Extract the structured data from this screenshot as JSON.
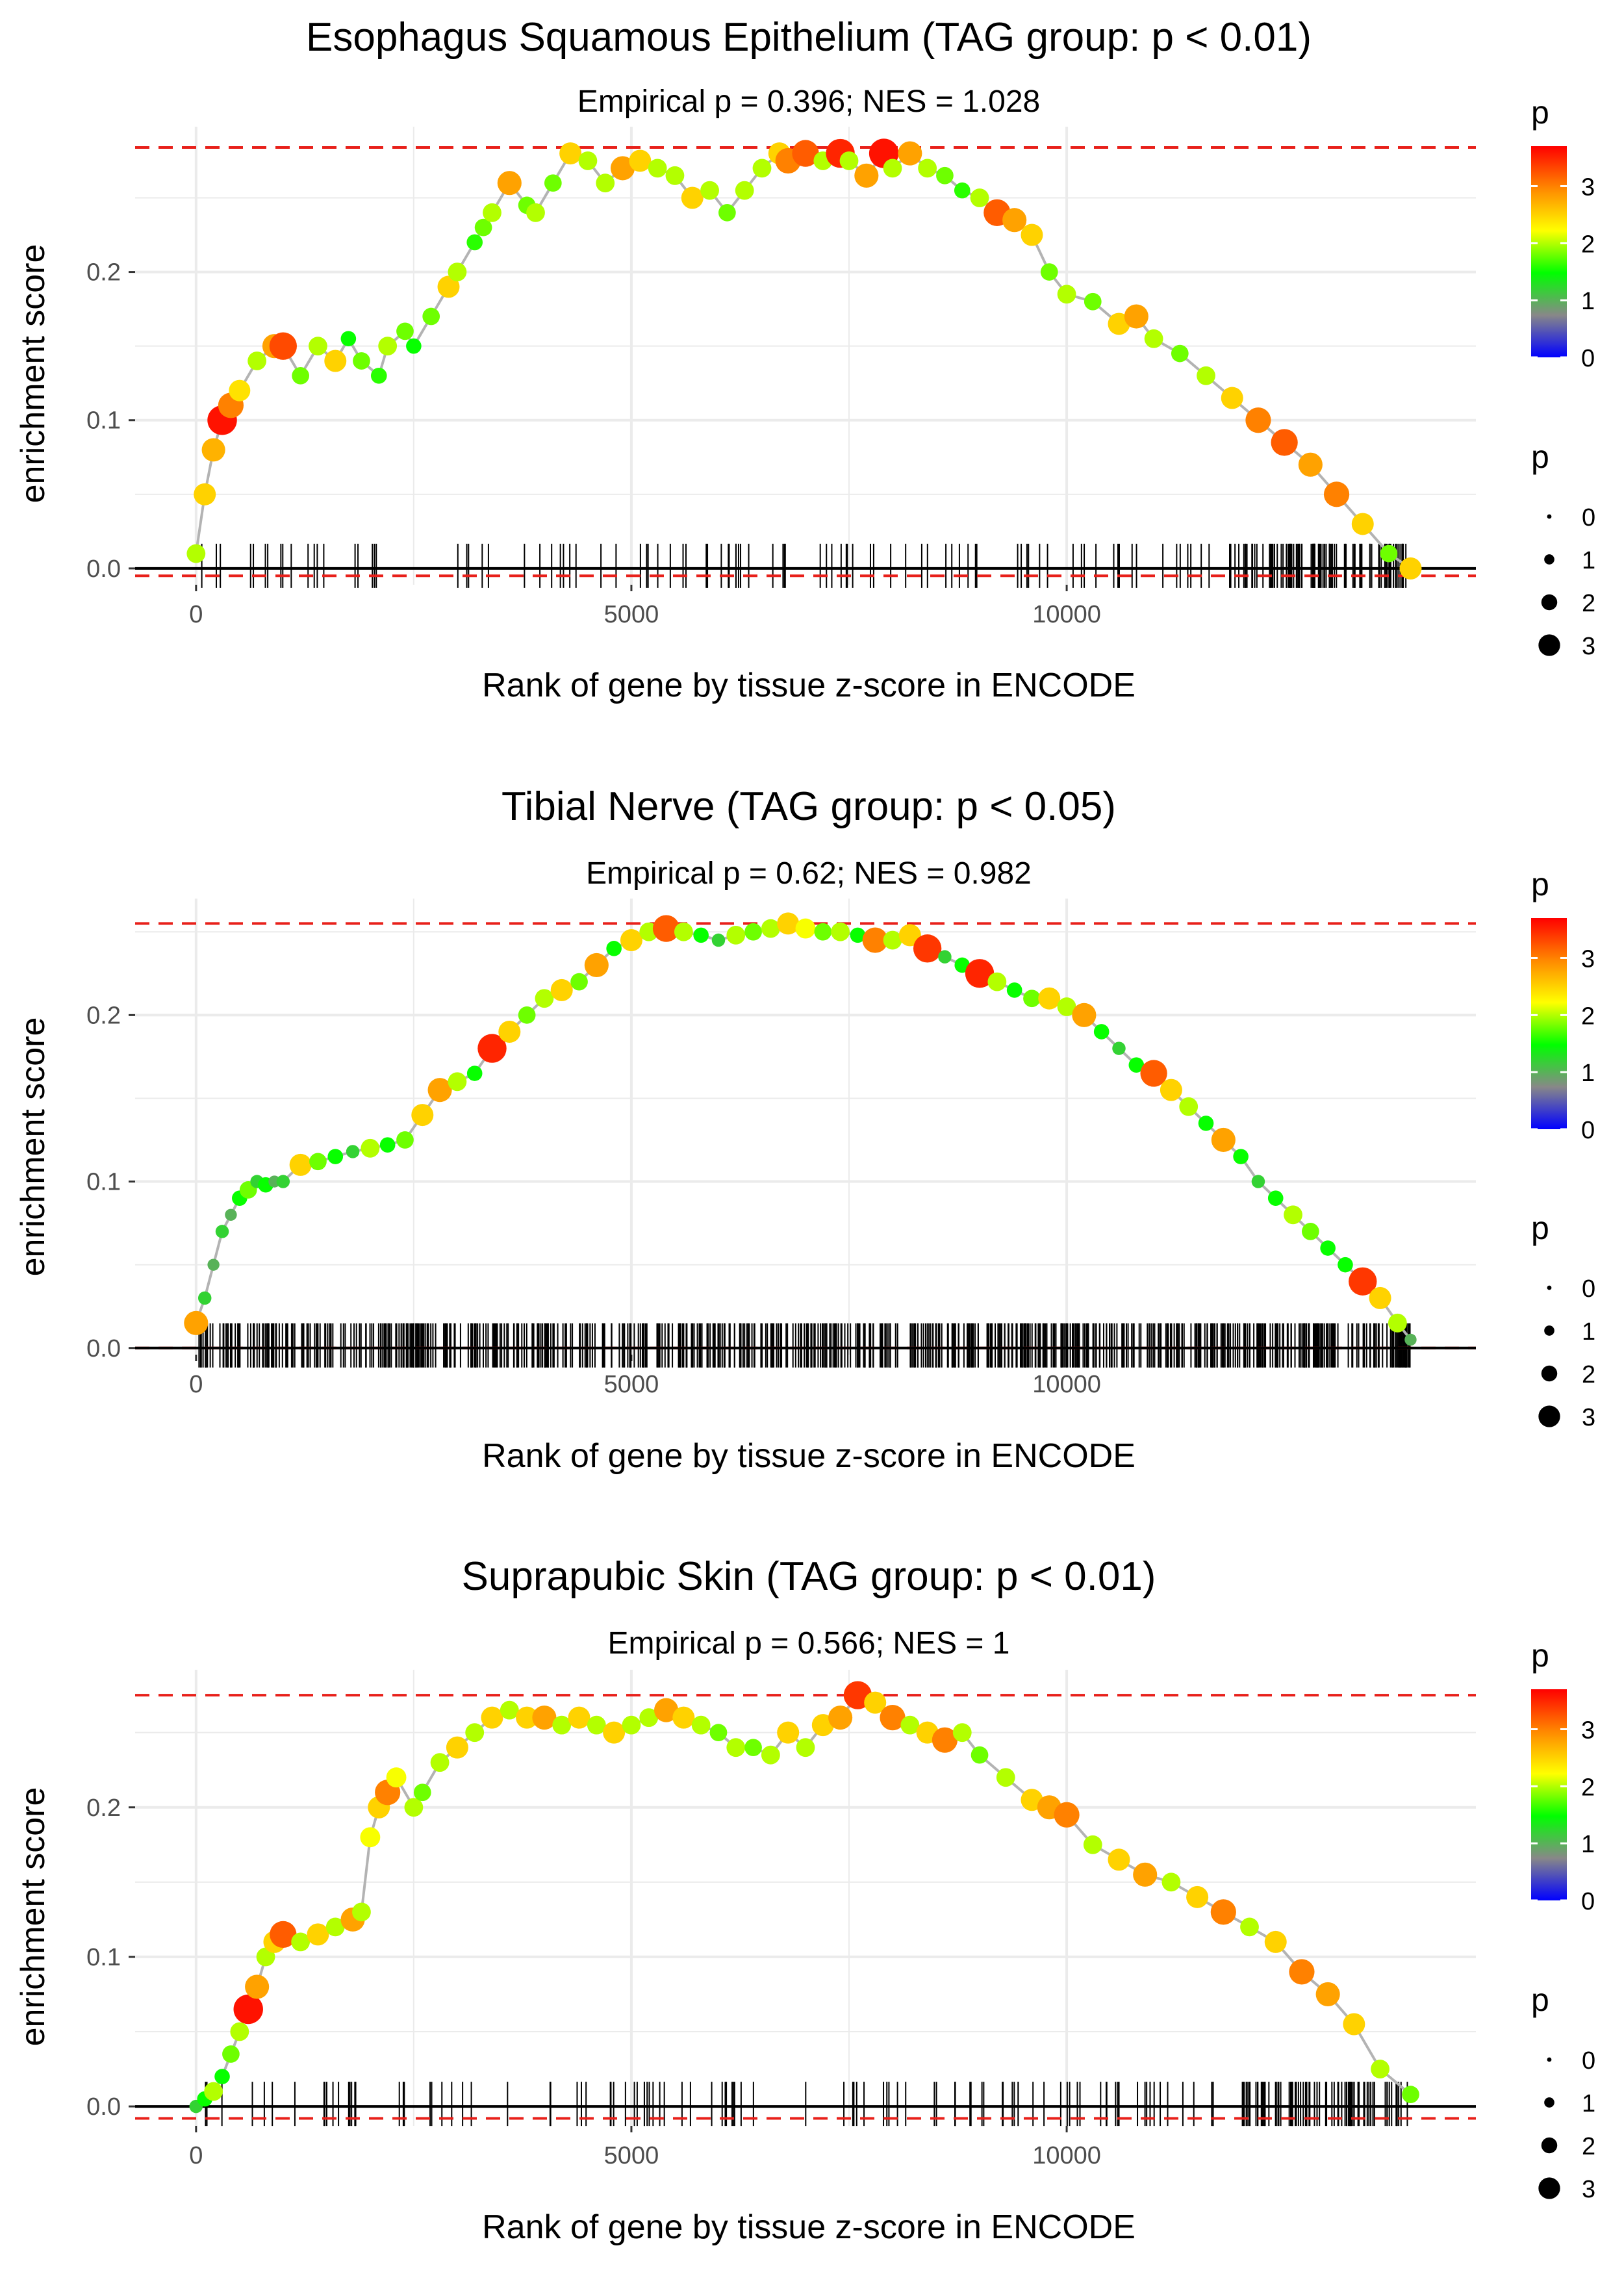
{
  "axis_common": {
    "xlabel": "Rank of gene by tissue z-score in ENCODE",
    "ylabel": "enrichment score",
    "xlim": [
      -700,
      14700
    ],
    "xticks": [
      0,
      5000,
      10000
    ],
    "yticks": [
      0.0,
      0.1,
      0.2
    ],
    "ytick_labels": [
      "0.0",
      "0.1",
      "0.2"
    ]
  },
  "legend": {
    "color_title": "p",
    "color_ticks": [
      0,
      1,
      2,
      3
    ],
    "color_range": [
      0,
      3.7
    ],
    "color_stops": [
      "#0000ff",
      "#888888",
      "#00ff00",
      "#ffff00",
      "#ff8800",
      "#ff0000"
    ],
    "size_title": "p",
    "size_values": [
      0,
      1,
      2,
      3
    ]
  },
  "colors": {
    "curve": "#b3b3b3",
    "max_line": "#e8201a",
    "grid": "#ebebeb",
    "zero_line": "#000000",
    "rug": "#000000"
  },
  "chart_data": [
    {
      "type": "scatter",
      "title": "Esophagus Squamous Epithelium (TAG group: p < 0.01)",
      "subtitle": "Empirical p = 0.396; NES = 1.028",
      "xlabel": "Rank of gene by tissue z-score in ENCODE",
      "ylabel": "enrichment score",
      "ylim": [
        -0.011,
        0.298
      ],
      "max_es": 0.284,
      "min_es": -0.005,
      "rug_density": "sparse",
      "x": [
        0,
        100,
        200,
        300,
        400,
        500,
        700,
        900,
        1000,
        1200,
        1400,
        1600,
        1750,
        1900,
        2100,
        2200,
        2400,
        2500,
        2700,
        2900,
        3000,
        3200,
        3300,
        3400,
        3600,
        3800,
        3900,
        4100,
        4300,
        4500,
        4700,
        4900,
        5100,
        5300,
        5500,
        5700,
        5900,
        6100,
        6300,
        6500,
        6700,
        6800,
        7000,
        7200,
        7400,
        7500,
        7700,
        7900,
        8000,
        8200,
        8400,
        8600,
        8800,
        9000,
        9200,
        9400,
        9600,
        9800,
        10000,
        10300,
        10600,
        10800,
        11000,
        11300,
        11600,
        11900,
        12200,
        12500,
        12800,
        13100,
        13400,
        13700,
        13950
      ],
      "y": [
        0.01,
        0.05,
        0.08,
        0.1,
        0.11,
        0.12,
        0.14,
        0.15,
        0.15,
        0.13,
        0.15,
        0.14,
        0.155,
        0.14,
        0.13,
        0.15,
        0.16,
        0.15,
        0.17,
        0.19,
        0.2,
        0.22,
        0.23,
        0.24,
        0.26,
        0.245,
        0.24,
        0.26,
        0.28,
        0.275,
        0.26,
        0.27,
        0.275,
        0.27,
        0.265,
        0.25,
        0.255,
        0.24,
        0.255,
        0.27,
        0.28,
        0.275,
        0.28,
        0.275,
        0.28,
        0.275,
        0.265,
        0.28,
        0.27,
        0.28,
        0.27,
        0.265,
        0.255,
        0.25,
        0.24,
        0.235,
        0.225,
        0.2,
        0.185,
        0.18,
        0.165,
        0.17,
        0.155,
        0.145,
        0.13,
        0.115,
        0.1,
        0.085,
        0.07,
        0.05,
        0.03,
        0.01,
        0.0
      ],
      "p": [
        2.0,
        2.5,
        2.7,
        3.6,
        3.0,
        2.4,
        2.0,
        2.8,
        3.3,
        1.8,
        2.0,
        2.5,
        1.5,
        1.8,
        1.6,
        2.0,
        1.8,
        1.5,
        1.8,
        2.5,
        2.0,
        1.6,
        1.8,
        2.0,
        2.8,
        1.8,
        2.0,
        1.8,
        2.5,
        2.0,
        2.0,
        2.8,
        2.5,
        2.0,
        2.0,
        2.5,
        2.0,
        1.8,
        2.0,
        2.0,
        2.5,
        3.0,
        3.2,
        2.0,
        3.5,
        2.0,
        2.8,
        3.6,
        2.0,
        2.8,
        2.0,
        1.8,
        1.6,
        2.0,
        3.2,
        2.8,
        2.5,
        1.8,
        2.0,
        1.8,
        2.5,
        2.8,
        2.0,
        1.8,
        2.0,
        2.5,
        3.0,
        3.2,
        2.8,
        3.0,
        2.5,
        1.8,
        2.5
      ]
    },
    {
      "type": "scatter",
      "title": "Tibial Nerve (TAG group: p < 0.05)",
      "subtitle": "Empirical p = 0.62; NES = 0.982",
      "xlabel": "Rank of gene by tissue z-score in ENCODE",
      "ylabel": "enrichment score",
      "ylim": [
        -0.004,
        0.27
      ],
      "max_es": 0.255,
      "min_es": 0.0,
      "rug_density": "dense",
      "x": [
        0,
        100,
        200,
        300,
        400,
        500,
        600,
        700,
        800,
        900,
        1000,
        1200,
        1400,
        1600,
        1800,
        2000,
        2200,
        2400,
        2600,
        2800,
        3000,
        3200,
        3400,
        3600,
        3800,
        4000,
        4200,
        4400,
        4600,
        4800,
        5000,
        5200,
        5400,
        5600,
        5800,
        6000,
        6200,
        6400,
        6600,
        6800,
        7000,
        7200,
        7400,
        7600,
        7800,
        8000,
        8200,
        8400,
        8600,
        8800,
        9000,
        9200,
        9400,
        9600,
        9800,
        10000,
        10200,
        10400,
        10600,
        10800,
        11000,
        11200,
        11400,
        11600,
        11800,
        12000,
        12200,
        12400,
        12600,
        12800,
        13000,
        13200,
        13400,
        13600,
        13800,
        13950
      ],
      "y": [
        0.015,
        0.03,
        0.05,
        0.07,
        0.08,
        0.09,
        0.095,
        0.1,
        0.098,
        0.1,
        0.1,
        0.11,
        0.112,
        0.115,
        0.118,
        0.12,
        0.122,
        0.125,
        0.14,
        0.155,
        0.16,
        0.165,
        0.18,
        0.19,
        0.2,
        0.21,
        0.215,
        0.22,
        0.23,
        0.24,
        0.245,
        0.25,
        0.252,
        0.25,
        0.248,
        0.245,
        0.248,
        0.25,
        0.252,
        0.255,
        0.252,
        0.25,
        0.25,
        0.248,
        0.245,
        0.245,
        0.248,
        0.24,
        0.235,
        0.23,
        0.225,
        0.22,
        0.215,
        0.21,
        0.21,
        0.205,
        0.2,
        0.19,
        0.18,
        0.17,
        0.165,
        0.155,
        0.145,
        0.135,
        0.125,
        0.115,
        0.1,
        0.09,
        0.08,
        0.07,
        0.06,
        0.05,
        0.04,
        0.03,
        0.015,
        0.005
      ],
      "p": [
        2.8,
        1.2,
        1.0,
        1.2,
        1.0,
        1.5,
        1.8,
        1.2,
        1.5,
        1.0,
        1.2,
        2.5,
        1.8,
        1.5,
        1.2,
        2.0,
        1.5,
        1.8,
        2.5,
        2.8,
        2.0,
        1.5,
        3.5,
        2.5,
        1.8,
        2.0,
        2.5,
        1.8,
        2.8,
        1.5,
        2.5,
        2.0,
        3.2,
        2.0,
        1.5,
        1.2,
        2.0,
        1.8,
        2.0,
        2.5,
        2.2,
        1.8,
        2.0,
        1.5,
        3.0,
        2.0,
        2.5,
        3.4,
        1.2,
        1.5,
        3.5,
        2.0,
        1.5,
        1.8,
        2.5,
        2.0,
        2.8,
        1.5,
        1.2,
        1.5,
        3.2,
        2.5,
        2.0,
        1.5,
        2.8,
        1.5,
        1.2,
        1.5,
        2.0,
        1.8,
        1.5,
        1.5,
        3.4,
        2.5,
        2.0,
        1.0
      ]
    },
    {
      "type": "scatter",
      "title": "Suprapubic Skin (TAG group: p < 0.01)",
      "subtitle": "Empirical p = 0.566; NES = 1",
      "xlabel": "Rank of gene by tissue z-score in ENCODE",
      "ylabel": "enrichment score",
      "ylim": [
        -0.013,
        0.292
      ],
      "max_es": 0.275,
      "min_es": -0.008,
      "rug_density": "sparse",
      "x": [
        0,
        100,
        200,
        300,
        400,
        500,
        600,
        700,
        800,
        900,
        1000,
        1200,
        1400,
        1600,
        1800,
        1900,
        2000,
        2100,
        2200,
        2300,
        2500,
        2600,
        2800,
        3000,
        3200,
        3400,
        3600,
        3800,
        4000,
        4200,
        4400,
        4600,
        4800,
        5000,
        5200,
        5400,
        5600,
        5800,
        6000,
        6200,
        6400,
        6600,
        6800,
        7000,
        7200,
        7400,
        7600,
        7800,
        8000,
        8200,
        8400,
        8600,
        8800,
        9000,
        9300,
        9600,
        9800,
        10000,
        10300,
        10600,
        10900,
        11200,
        11500,
        11800,
        12100,
        12400,
        12700,
        13000,
        13300,
        13600,
        13950
      ],
      "y": [
        0.0,
        0.005,
        0.01,
        0.02,
        0.035,
        0.05,
        0.065,
        0.08,
        0.1,
        0.11,
        0.115,
        0.11,
        0.115,
        0.12,
        0.125,
        0.13,
        0.18,
        0.2,
        0.21,
        0.22,
        0.2,
        0.21,
        0.23,
        0.24,
        0.25,
        0.26,
        0.265,
        0.26,
        0.26,
        0.255,
        0.26,
        0.255,
        0.25,
        0.255,
        0.26,
        0.265,
        0.26,
        0.255,
        0.25,
        0.24,
        0.24,
        0.235,
        0.25,
        0.24,
        0.255,
        0.26,
        0.275,
        0.27,
        0.26,
        0.255,
        0.25,
        0.245,
        0.25,
        0.235,
        0.22,
        0.205,
        0.2,
        0.195,
        0.175,
        0.165,
        0.155,
        0.15,
        0.14,
        0.13,
        0.12,
        0.11,
        0.09,
        0.075,
        0.055,
        0.025,
        0.008
      ],
      "p": [
        1.2,
        1.5,
        2.0,
        1.5,
        1.8,
        2.0,
        3.6,
        2.8,
        2.0,
        2.5,
        3.2,
        2.0,
        2.5,
        2.0,
        2.8,
        2.0,
        2.2,
        2.5,
        3.0,
        2.2,
        2.0,
        1.8,
        2.0,
        2.5,
        2.0,
        2.5,
        2.0,
        2.5,
        2.8,
        2.0,
        2.5,
        2.0,
        2.5,
        2.0,
        2.0,
        2.8,
        2.5,
        2.0,
        1.8,
        2.0,
        1.8,
        2.0,
        2.5,
        2.0,
        2.5,
        2.8,
        3.4,
        2.5,
        3.0,
        2.0,
        2.5,
        3.0,
        2.0,
        1.8,
        2.0,
        2.5,
        2.8,
        3.0,
        2.0,
        2.5,
        2.8,
        2.0,
        2.5,
        3.0,
        2.0,
        2.5,
        3.0,
        2.8,
        2.5,
        2.0,
        1.8
      ]
    }
  ]
}
